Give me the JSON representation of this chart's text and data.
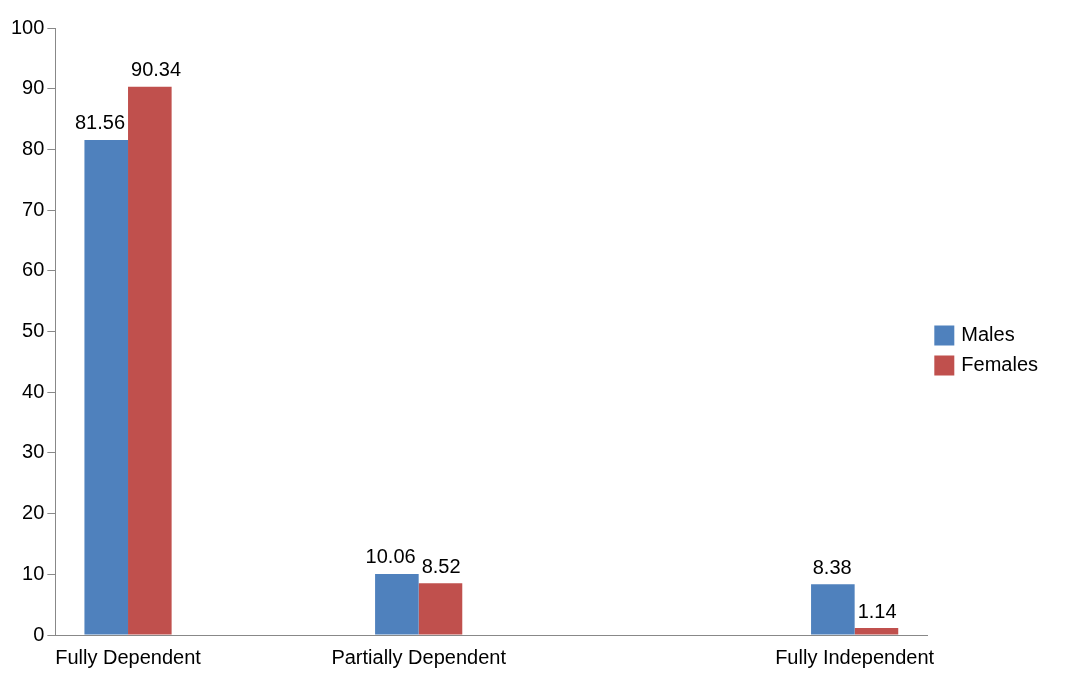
{
  "chart_data": {
    "type": "bar",
    "categories": [
      "Fully Dependent",
      null,
      "Partially Dependent",
      null,
      null,
      "Fully Independent"
    ],
    "series": [
      {
        "name": "Males",
        "color": "#4f81bd",
        "values": [
          81.56,
          null,
          10.06,
          null,
          null,
          8.38
        ]
      },
      {
        "name": "Females",
        "color": "#c0504d",
        "values": [
          90.34,
          null,
          8.52,
          null,
          null,
          1.14
        ]
      }
    ],
    "ylim": [
      0,
      100
    ],
    "yticks": [
      0,
      10,
      20,
      30,
      40,
      50,
      60,
      70,
      80,
      90,
      100
    ],
    "grid": false,
    "legend": "right",
    "data_labels": true
  }
}
